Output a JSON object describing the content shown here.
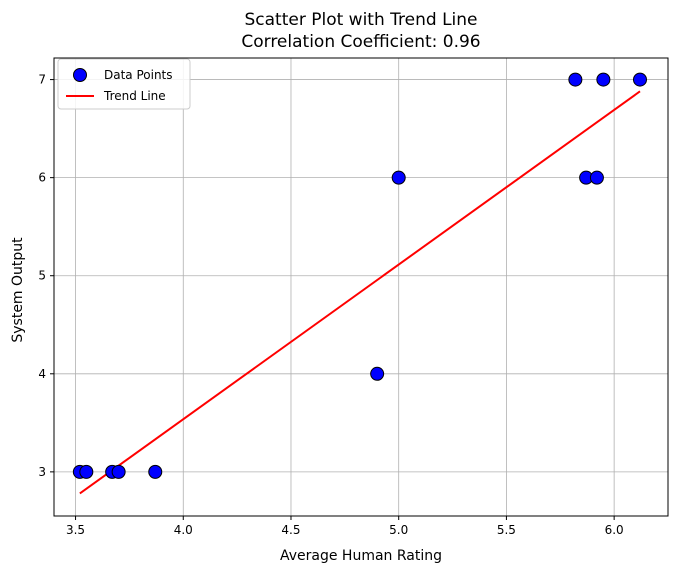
{
  "chart_data": {
    "type": "scatter",
    "title": "Scatter Plot with Trend Line",
    "subtitle": "Correlation Coefficient: 0.96",
    "xlabel": "Average Human Rating",
    "ylabel": "System Output",
    "xlim": [
      3.4,
      6.25
    ],
    "ylim": [
      2.55,
      7.22
    ],
    "x_ticks": [
      "3.5",
      "4.0",
      "4.5",
      "5.0",
      "5.5",
      "6.0"
    ],
    "y_ticks": [
      "3",
      "4",
      "5",
      "6",
      "7"
    ],
    "grid": true,
    "legend_position": "top-left",
    "series": [
      {
        "name": "Data Points",
        "kind": "scatter",
        "color": "#0000ff",
        "edge_color": "#000000",
        "points": [
          {
            "x": 3.52,
            "y": 3
          },
          {
            "x": 3.55,
            "y": 3
          },
          {
            "x": 3.67,
            "y": 3
          },
          {
            "x": 3.7,
            "y": 3
          },
          {
            "x": 3.87,
            "y": 3
          },
          {
            "x": 4.9,
            "y": 4
          },
          {
            "x": 5.0,
            "y": 6
          },
          {
            "x": 5.82,
            "y": 7
          },
          {
            "x": 5.87,
            "y": 6
          },
          {
            "x": 5.92,
            "y": 6
          },
          {
            "x": 5.95,
            "y": 7
          },
          {
            "x": 6.12,
            "y": 7
          }
        ]
      },
      {
        "name": "Trend Line",
        "kind": "line",
        "color": "#ff0000",
        "points": [
          {
            "x": 3.52,
            "y": 2.78
          },
          {
            "x": 6.12,
            "y": 6.88
          }
        ]
      }
    ]
  }
}
